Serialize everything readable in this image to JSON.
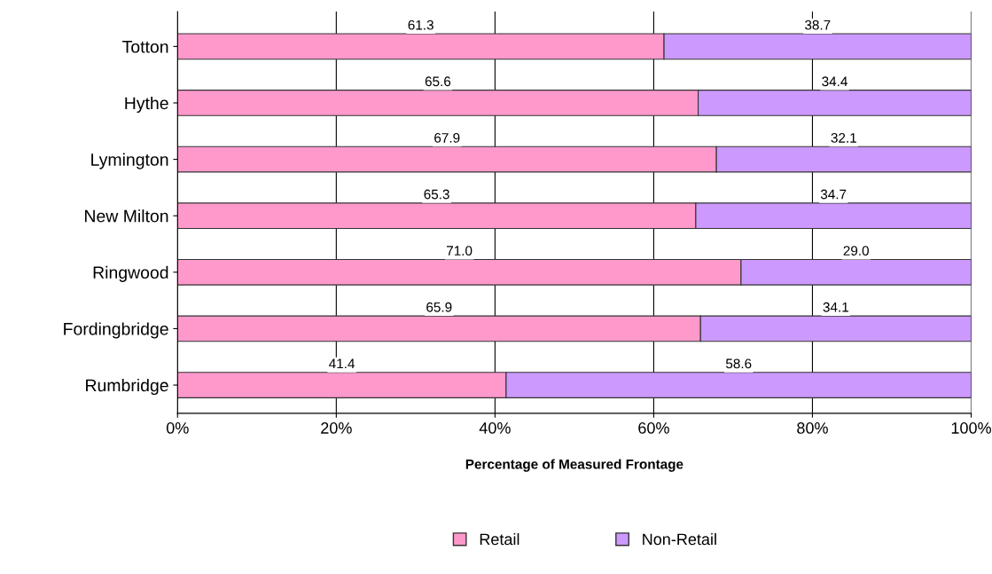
{
  "chart_data": {
    "type": "bar",
    "orientation": "horizontal",
    "stacked": true,
    "xlabel": "Percentage of Measured Frontage",
    "categories": [
      "Totton",
      "Hythe",
      "Lymington",
      "New Milton",
      "Ringwood",
      "Fordingbridge",
      "Rumbridge"
    ],
    "series": [
      {
        "name": "Retail",
        "color": "#ff99cc",
        "values": [
          61.3,
          65.6,
          67.9,
          65.3,
          71.0,
          65.9,
          41.4
        ],
        "value_labels": [
          "61.3",
          "65.6",
          "67.9",
          "65.3",
          "71.0",
          "65.9",
          "41.4"
        ]
      },
      {
        "name": "Non-Retail",
        "color": "#cc99ff",
        "values": [
          38.7,
          34.4,
          32.1,
          34.7,
          29.0,
          34.1,
          58.6
        ],
        "value_labels": [
          "38.7",
          "34.4",
          "32.1",
          "34.7",
          "29.0",
          "34.1",
          "58.6"
        ]
      }
    ],
    "xlim": [
      0,
      100
    ],
    "xticks": [
      {
        "value": 0,
        "label": "0%"
      },
      {
        "value": 20,
        "label": "20%"
      },
      {
        "value": 40,
        "label": "40%"
      },
      {
        "value": 60,
        "label": "60%"
      },
      {
        "value": 80,
        "label": "80%"
      },
      {
        "value": 100,
        "label": "100%"
      }
    ],
    "grid": "x",
    "legend": "bottom"
  }
}
